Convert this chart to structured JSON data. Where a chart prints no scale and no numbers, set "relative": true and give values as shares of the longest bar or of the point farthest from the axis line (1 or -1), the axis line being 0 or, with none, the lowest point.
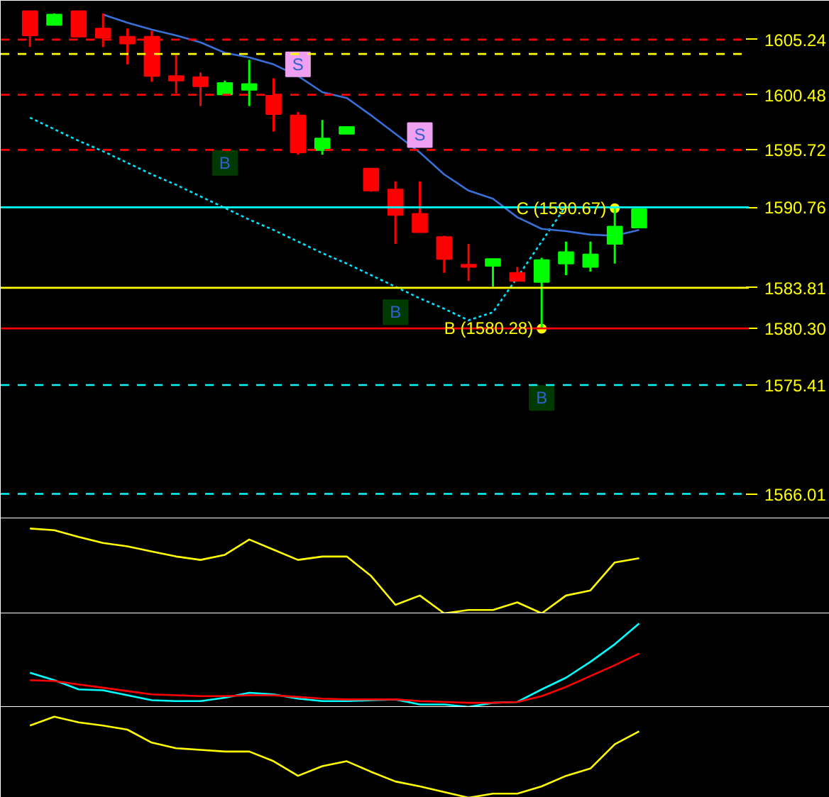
{
  "chart_data": [
    {
      "type": "candlestick",
      "categories": [
        null,
        null,
        null,
        null,
        null,
        null,
        null,
        null,
        null,
        null,
        null,
        null,
        null,
        null,
        null,
        null,
        null,
        null,
        null,
        null,
        null,
        null,
        null,
        null,
        null,
        null
      ],
      "ylim": [
        1563.9,
        1608.6
      ],
      "yticks": [
        1605.24,
        1600.48,
        1595.72,
        1590.76,
        1583.81,
        {
          "value": 1580.3,
          "label": "1580.30"
        },
        1575.41,
        1566.01
      ],
      "tick_labels": "y",
      "ohlc": [
        [
          1607.7,
          1607.7,
          1604.6,
          1605.6
        ],
        [
          1606.5,
          1607.5,
          1606.5,
          1607.4
        ],
        [
          1607.7,
          1607.7,
          1605.5,
          1605.5
        ],
        [
          1606.2,
          1607.5,
          1604.6,
          1605.4
        ],
        [
          1605.5,
          1606.2,
          1603.1,
          1604.9
        ],
        [
          1605.5,
          1606.0,
          1601.6,
          1602.1
        ],
        [
          1602.1,
          1603.9,
          1600.6,
          1601.7
        ],
        [
          1602.0,
          1602.4,
          1599.5,
          1601.2
        ],
        [
          1600.5,
          1601.7,
          1600.5,
          1601.5
        ],
        [
          1600.9,
          1603.5,
          1599.5,
          1601.4
        ],
        [
          1600.4,
          1601.9,
          1597.3,
          1598.8
        ],
        [
          1598.7,
          1599.0,
          1595.3,
          1595.5
        ],
        [
          1595.7,
          1598.3,
          1595.3,
          1596.7
        ],
        [
          1597.1,
          1597.7,
          1597.1,
          1597.7
        ],
        [
          1594.1,
          1594.1,
          1592.1,
          1592.2
        ],
        [
          1592.3,
          1593.0,
          1587.6,
          1590.1
        ],
        [
          1590.2,
          1593.0,
          1588.6,
          1588.6
        ],
        [
          1588.2,
          1588.3,
          1585.1,
          1586.3
        ],
        [
          1585.8,
          1587.6,
          1584.4,
          1585.6
        ],
        [
          1585.7,
          1586.3,
          1583.9,
          1586.3
        ],
        [
          1585.1,
          1585.6,
          1584.4,
          1584.4
        ],
        [
          1584.3,
          1586.4,
          1580.28,
          1586.2
        ],
        [
          1585.9,
          1587.8,
          1584.9,
          1586.9
        ],
        [
          1585.6,
          1587.8,
          1585.2,
          1586.7
        ],
        [
          1587.6,
          1590.67,
          1585.9,
          1589.1
        ],
        [
          1589.0,
          1590.6,
          1589.0,
          1590.6
        ]
      ],
      "colors": [
        "#ff0000",
        "#00ff00",
        "#ff0000",
        "#ff0000",
        "#ff0000",
        "#ff0000",
        "#ff0000",
        "#ff0000",
        "#00ff00",
        "#00ff00",
        "#ff0000",
        "#ff0000",
        "#00ff00",
        "#00ff00",
        "#ff0000",
        "#ff0000",
        "#ff0000",
        "#ff0000",
        "#ff0000",
        "#00ff00",
        "#ff0000",
        "#00ff00",
        "#00ff00",
        "#00ff00",
        "#00ff00",
        "#00ff00"
      ],
      "series": [
        {
          "type": "line",
          "color": "#00e5ff",
          "line_style": "dotted",
          "values": [
            1598.5,
            1597.5,
            1596.5,
            1595.6,
            1594.6,
            1593.6,
            1592.7,
            1591.7,
            1590.7,
            1589.7,
            1588.8,
            1587.8,
            1586.8,
            1585.9,
            1584.9,
            1583.9,
            1582.9,
            1582.0,
            1581.0,
            1581.7,
            1584.7,
            1587.8,
            1590.9,
            null,
            null,
            null
          ]
        },
        {
          "type": "line",
          "color": "#3a6fd8",
          "values": [
            null,
            null,
            null,
            1607.4,
            1606.7,
            1606.1,
            1605.6,
            1605.0,
            1604.1,
            1603.7,
            1603.1,
            1602.1,
            1600.7,
            1600.2,
            1598.7,
            1597.1,
            1595.5,
            1593.6,
            1592.2,
            1591.5,
            1589.9,
            1588.9,
            1588.7,
            1588.4,
            1588.3,
            1588.8
          ]
        },
        {
          "type": "scatter",
          "marker": "square",
          "color": "#003a00",
          "values": [
            null,
            null,
            null,
            null,
            null,
            null,
            null,
            null,
            1594.6,
            null,
            null,
            null,
            null,
            null,
            null,
            1581.7,
            null,
            null,
            null,
            null,
            null,
            1574.3,
            null,
            null,
            null,
            null
          ],
          "value_labels": [
            null,
            null,
            null,
            null,
            null,
            null,
            null,
            null,
            "B",
            null,
            null,
            null,
            null,
            null,
            null,
            "B",
            null,
            null,
            null,
            null,
            null,
            "B",
            null,
            null,
            null,
            null
          ]
        },
        {
          "type": "scatter",
          "marker": "square",
          "color": "#f0a0f0",
          "values": [
            null,
            null,
            null,
            null,
            null,
            null,
            null,
            null,
            null,
            null,
            null,
            1603.1,
            null,
            null,
            null,
            null,
            1597.0,
            null,
            null,
            null,
            null,
            null,
            null,
            null,
            null,
            null
          ],
          "value_labels": [
            null,
            null,
            null,
            null,
            null,
            null,
            null,
            null,
            null,
            null,
            null,
            "S",
            null,
            null,
            null,
            null,
            "S",
            null,
            null,
            null,
            null,
            null,
            null,
            null,
            null,
            null
          ]
        },
        {
          "type": "scatter",
          "marker": "circle",
          "color": "#ffff00",
          "values": [
            null,
            null,
            null,
            null,
            null,
            null,
            null,
            null,
            null,
            null,
            null,
            null,
            null,
            null,
            null,
            null,
            null,
            null,
            null,
            null,
            null,
            1580.28,
            null,
            null,
            1590.67,
            null
          ],
          "value_labels": [
            null,
            null,
            null,
            null,
            null,
            null,
            null,
            null,
            null,
            null,
            null,
            null,
            null,
            null,
            null,
            null,
            null,
            null,
            null,
            null,
            null,
            "B (1580.28)",
            null,
            null,
            "C (1590.67)",
            null
          ]
        }
      ],
      "ref_lines": [
        {
          "axis": "y",
          "value": 1605.24,
          "color": "#ff0000",
          "line_style": "dashed"
        },
        {
          "axis": "y",
          "value": 1604.0,
          "color": "#ffff00",
          "line_style": "dashed"
        },
        {
          "axis": "y",
          "value": 1600.48,
          "color": "#ff0000",
          "line_style": "dashed"
        },
        {
          "axis": "y",
          "value": 1595.72,
          "color": "#ff0000",
          "line_style": "dashed"
        },
        {
          "axis": "y",
          "value": 1590.76,
          "color": "#00ffff",
          "line_style": "solid"
        },
        {
          "axis": "y",
          "value": 1583.81,
          "color": "#ffff00",
          "line_style": "solid"
        },
        {
          "axis": "y",
          "value": 1580.3,
          "color": "#ff0000",
          "line_style": "solid"
        },
        {
          "axis": "y",
          "value": 1575.41,
          "color": "#00ffff",
          "line_style": "dashed"
        },
        {
          "axis": "y",
          "value": 1566.01,
          "color": "#00ffff",
          "line_style": "dashed"
        }
      ]
    },
    {
      "type": "line",
      "categories": [
        null,
        null,
        null,
        null,
        null,
        null,
        null,
        null,
        null,
        null,
        null,
        null,
        null,
        null,
        null,
        null,
        null,
        null,
        null,
        null,
        null,
        null,
        null,
        null,
        null,
        null
      ],
      "relative": true,
      "tick_labels": false,
      "series": [
        {
          "color": "#ffff00",
          "values": [
            1,
            0.98,
            0.9,
            0.83,
            0.79,
            0.73,
            0.67,
            0.63,
            0.69,
            0.87,
            0.75,
            0.63,
            0.67,
            0.67,
            0.44,
            0.1,
            0.21,
            0,
            0.04,
            0.04,
            0.13,
            0,
            0.21,
            0.27,
            0.6,
            0.65
          ]
        }
      ]
    },
    {
      "type": "line",
      "categories": [
        null,
        null,
        null,
        null,
        null,
        null,
        null,
        null,
        null,
        null,
        null,
        null,
        null,
        null,
        null,
        null,
        null,
        null,
        null,
        null,
        null,
        null,
        null,
        null,
        null,
        null
      ],
      "relative": true,
      "tick_labels": false,
      "series": [
        {
          "color": "#00ffff",
          "values": [
            0.41,
            0.32,
            0.21,
            0.2,
            0.14,
            0.08,
            0.07,
            0.07,
            0.11,
            0.17,
            0.15,
            0.1,
            0.07,
            0.07,
            0.08,
            0.09,
            0.03,
            0.03,
            0,
            0.05,
            0.06,
            0.21,
            0.35,
            0.54,
            0.75,
            1
          ]
        },
        {
          "color": "#ff0000",
          "values": [
            0.32,
            0.31,
            0.27,
            0.23,
            0.19,
            0.15,
            0.14,
            0.13,
            0.13,
            0.14,
            0.14,
            0.12,
            0.1,
            0.09,
            0.09,
            0.09,
            0.07,
            0.06,
            0.05,
            0.05,
            0.06,
            0.13,
            0.24,
            0.37,
            0.5,
            0.64
          ]
        }
      ]
    },
    {
      "type": "line",
      "categories": [
        null,
        null,
        null,
        null,
        null,
        null,
        null,
        null,
        null,
        null,
        null,
        null,
        null,
        null,
        null,
        null,
        null,
        null,
        null,
        null,
        null,
        null,
        null,
        null,
        null,
        null
      ],
      "relative": true,
      "tick_labels": false,
      "series": [
        {
          "color": "#ffff00",
          "values": [
            0.89,
            1,
            0.93,
            0.89,
            0.84,
            0.68,
            0.61,
            0.59,
            0.57,
            0.57,
            0.45,
            0.27,
            0.39,
            0.45,
            0.32,
            0.2,
            0.14,
            0.07,
            0,
            0.05,
            0.05,
            0.14,
            0.27,
            0.36,
            0.66,
            0.82
          ]
        }
      ]
    }
  ]
}
